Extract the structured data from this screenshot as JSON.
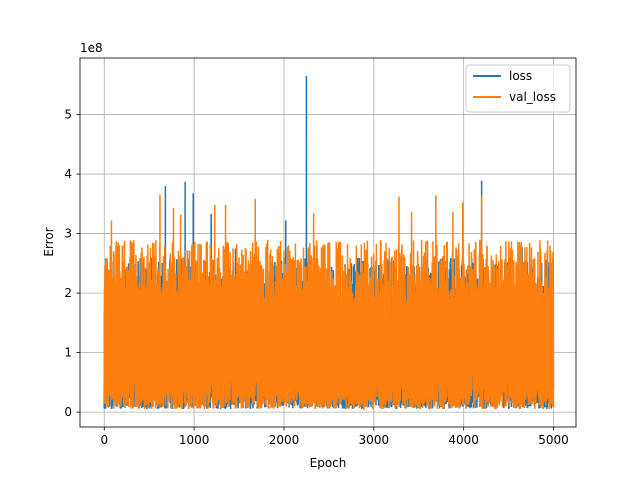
{
  "chart_data": {
    "type": "line",
    "title": "",
    "xlabel": "Epoch",
    "ylabel": "Error",
    "y_scale_label": "1e8",
    "xlim": [
      -270,
      5250
    ],
    "ylim": [
      -0.25,
      5.95
    ],
    "y_multiplier": 100000000,
    "xticks": [
      0,
      1000,
      2000,
      3000,
      4000,
      5000
    ],
    "xtick_labels": [
      "0",
      "1000",
      "2000",
      "3000",
      "4000",
      "5000"
    ],
    "yticks": [
      0,
      1,
      2,
      3,
      4,
      5
    ],
    "ytick_labels": [
      "0",
      "1",
      "2",
      "3",
      "4",
      "5"
    ],
    "grid": true,
    "legend_position": "top-right",
    "epochs": 5000,
    "series": [
      {
        "name": "loss",
        "color": "#1f77b4",
        "typical_range": [
          0.05,
          2.6
        ],
        "peaks": [
          [
            680,
            3.8
          ],
          [
            900,
            3.87
          ],
          [
            990,
            3.68
          ],
          [
            1190,
            3.33
          ],
          [
            1460,
            2.75
          ],
          [
            2020,
            3.22
          ],
          [
            2250,
            5.65
          ],
          [
            4200,
            3.89
          ],
          [
            4650,
            2.77
          ],
          [
            4790,
            2.2
          ]
        ]
      },
      {
        "name": "val_loss",
        "color": "#ff7f0e",
        "typical_range": [
          0.05,
          2.9
        ],
        "peaks": [
          [
            80,
            3.22
          ],
          [
            620,
            3.65
          ],
          [
            770,
            3.43
          ],
          [
            850,
            3.32
          ],
          [
            1230,
            3.48
          ],
          [
            1350,
            3.48
          ],
          [
            1680,
            3.58
          ],
          [
            2330,
            3.34
          ],
          [
            3280,
            3.62
          ],
          [
            3420,
            3.36
          ],
          [
            3690,
            3.64
          ],
          [
            3880,
            3.36
          ],
          [
            3990,
            3.52
          ],
          [
            4200,
            3.63
          ]
        ]
      }
    ]
  }
}
